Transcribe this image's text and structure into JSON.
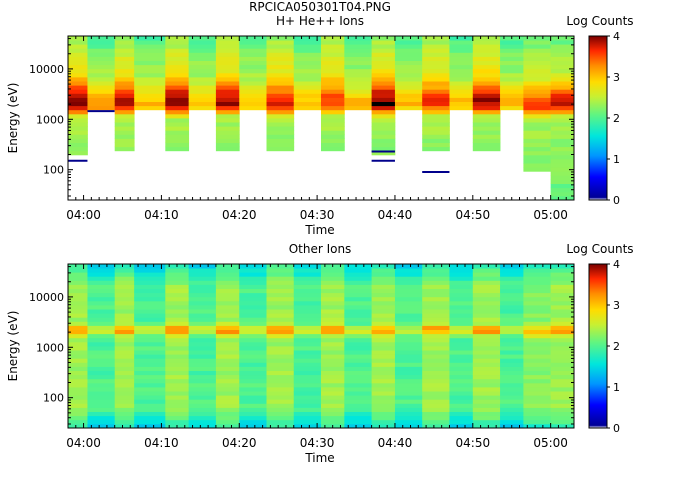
{
  "figure_title": "RPCICA050301T04.PNG",
  "chart_data": [
    {
      "type": "heatmap",
      "title": "H+ He++ Ions",
      "xlabel": "Time",
      "ylabel": "Energy (eV)",
      "x_ticks": [
        "04:00",
        "04:10",
        "04:20",
        "04:30",
        "04:40",
        "04:50",
        "05:00"
      ],
      "x_range": [
        "03:58",
        "05:03"
      ],
      "y_scale": "log",
      "y_ticks": [
        100,
        1000,
        10000
      ],
      "y_range": [
        25,
        45000
      ],
      "colorbar": {
        "label": "Log Counts",
        "range": [
          0,
          4
        ],
        "ticks": [
          0,
          1,
          2,
          3,
          4
        ]
      },
      "sweep_columns": [
        {
          "start": "03:58.0",
          "end": "04:00.5",
          "mode": "A",
          "low_cut_eV": 230,
          "peak_eV": 2100,
          "peak_level": 4.0,
          "band_floor_level": 2.6,
          "low_marker_eV": 150
        },
        {
          "start": "04:00.5",
          "end": "04:04.0",
          "mode": "B",
          "low_cut_eV": 1600,
          "peak_eV": 2000,
          "peak_level": 3.2,
          "band_floor_level": 2.2,
          "low_marker_eV": 1450
        },
        {
          "start": "04:04.0",
          "end": "04:06.5",
          "mode": "A",
          "low_cut_eV": 250,
          "peak_eV": 2100,
          "peak_level": 3.8,
          "band_floor_level": 2.6,
          "low_marker_eV": null
        },
        {
          "start": "04:06.5",
          "end": "04:10.5",
          "mode": "B",
          "low_cut_eV": 1600,
          "peak_eV": 2000,
          "peak_level": 3.0,
          "band_floor_level": 2.2,
          "low_marker_eV": null
        },
        {
          "start": "04:10.5",
          "end": "04:13.5",
          "mode": "A",
          "low_cut_eV": 250,
          "peak_eV": 2100,
          "peak_level": 4.0,
          "band_floor_level": 2.6,
          "low_marker_eV": null
        },
        {
          "start": "04:13.5",
          "end": "04:17.0",
          "mode": "B",
          "low_cut_eV": 1600,
          "peak_eV": 2000,
          "peak_level": 3.0,
          "band_floor_level": 2.2,
          "low_marker_eV": null
        },
        {
          "start": "04:17.0",
          "end": "04:20.0",
          "mode": "A",
          "low_cut_eV": 250,
          "peak_eV": 2200,
          "peak_level": 3.9,
          "band_floor_level": 2.6,
          "low_marker_eV": null
        },
        {
          "start": "04:20.0",
          "end": "04:23.5",
          "mode": "B",
          "low_cut_eV": 1600,
          "peak_eV": 2000,
          "peak_level": 3.0,
          "band_floor_level": 2.2,
          "low_marker_eV": null
        },
        {
          "start": "04:23.5",
          "end": "04:27.0",
          "mode": "A",
          "low_cut_eV": 250,
          "peak_eV": 2000,
          "peak_level": 3.7,
          "band_floor_level": 2.6,
          "low_marker_eV": null
        },
        {
          "start": "04:27.0",
          "end": "04:30.5",
          "mode": "B",
          "low_cut_eV": 1600,
          "peak_eV": 2000,
          "peak_level": 3.0,
          "band_floor_level": 2.2,
          "low_marker_eV": null
        },
        {
          "start": "04:30.5",
          "end": "04:33.5",
          "mode": "A",
          "low_cut_eV": 250,
          "peak_eV": 2100,
          "peak_level": 3.6,
          "band_floor_level": 2.6,
          "low_marker_eV": null
        },
        {
          "start": "04:33.5",
          "end": "04:37.0",
          "mode": "B",
          "low_cut_eV": 1600,
          "peak_eV": 2000,
          "peak_level": 3.0,
          "band_floor_level": 2.2,
          "low_marker_eV": null
        },
        {
          "start": "04:37.0",
          "end": "04:40.0",
          "mode": "A",
          "low_cut_eV": 230,
          "peak_eV": 2100,
          "peak_level": 4.0,
          "band_floor_level": 2.6,
          "low_marker_eV": 230
        },
        {
          "start": "04:40.0",
          "end": "04:43.5",
          "mode": "B",
          "low_cut_eV": 1600,
          "peak_eV": 2000,
          "peak_level": 3.0,
          "band_floor_level": 2.2,
          "low_marker_eV": null
        },
        {
          "start": "04:43.5",
          "end": "04:47.0",
          "mode": "A",
          "low_cut_eV": 250,
          "peak_eV": 2100,
          "peak_level": 3.6,
          "band_floor_level": 2.6,
          "low_marker_eV": 90
        },
        {
          "start": "04:47.0",
          "end": "04:50.0",
          "mode": "B",
          "low_cut_eV": 1600,
          "peak_eV": 2000,
          "peak_level": 3.0,
          "band_floor_level": 2.2,
          "low_marker_eV": null
        },
        {
          "start": "04:50.0",
          "end": "04:53.5",
          "mode": "A",
          "low_cut_eV": 250,
          "peak_eV": 2200,
          "peak_level": 3.9,
          "band_floor_level": 2.6,
          "low_marker_eV": null
        },
        {
          "start": "04:53.5",
          "end": "04:56.5",
          "mode": "B",
          "low_cut_eV": 1600,
          "peak_eV": 2000,
          "peak_level": 3.0,
          "band_floor_level": 2.2,
          "low_marker_eV": null
        },
        {
          "start": "04:56.5",
          "end": "05:00.0",
          "mode": "A",
          "low_cut_eV": 105,
          "peak_eV": 1800,
          "peak_level": 3.5,
          "band_floor_level": 2.4,
          "low_marker_eV": null
        },
        {
          "start": "05:00.0",
          "end": "05:03.0",
          "mode": "A",
          "low_cut_eV": 28,
          "peak_eV": 2100,
          "peak_level": 3.8,
          "band_floor_level": 2.3,
          "low_marker_eV": null
        }
      ],
      "extra_low_markers": [
        {
          "time": "04:37.0",
          "time_end": "04:40.0",
          "eV": 150
        }
      ]
    },
    {
      "type": "heatmap",
      "title": "Other Ions",
      "xlabel": "Time",
      "ylabel": "Energy (eV)",
      "x_ticks": [
        "04:00",
        "04:10",
        "04:20",
        "04:30",
        "04:40",
        "04:50",
        "05:00"
      ],
      "x_range": [
        "03:58",
        "05:03"
      ],
      "y_scale": "log",
      "y_ticks": [
        100,
        1000,
        10000
      ],
      "y_range": [
        25,
        45000
      ],
      "colorbar": {
        "label": "Log Counts",
        "range": [
          0,
          4
        ],
        "ticks": [
          0,
          1,
          2,
          3,
          4
        ]
      },
      "sweep_columns": [
        {
          "start": "03:58.0",
          "end": "04:00.5",
          "mode": "A",
          "peak_eV": 2200,
          "peak_level": 3.3,
          "background_level": 2.3
        },
        {
          "start": "04:00.5",
          "end": "04:04.0",
          "mode": "B",
          "peak_eV": 2200,
          "peak_level": 2.6,
          "background_level": 1.9
        },
        {
          "start": "04:04.0",
          "end": "04:06.5",
          "mode": "A",
          "peak_eV": 2200,
          "peak_level": 3.3,
          "background_level": 2.3
        },
        {
          "start": "04:06.5",
          "end": "04:10.5",
          "mode": "B",
          "peak_eV": 2200,
          "peak_level": 2.6,
          "background_level": 1.9
        },
        {
          "start": "04:10.5",
          "end": "04:13.5",
          "mode": "A",
          "peak_eV": 2200,
          "peak_level": 3.3,
          "background_level": 2.3
        },
        {
          "start": "04:13.5",
          "end": "04:17.0",
          "mode": "B",
          "peak_eV": 2200,
          "peak_level": 2.6,
          "background_level": 1.9
        },
        {
          "start": "04:17.0",
          "end": "04:20.0",
          "mode": "A",
          "peak_eV": 2200,
          "peak_level": 3.3,
          "background_level": 2.3
        },
        {
          "start": "04:20.0",
          "end": "04:23.5",
          "mode": "B",
          "peak_eV": 2200,
          "peak_level": 2.6,
          "background_level": 1.9
        },
        {
          "start": "04:23.5",
          "end": "04:27.0",
          "mode": "A",
          "peak_eV": 2200,
          "peak_level": 3.3,
          "background_level": 2.3
        },
        {
          "start": "04:27.0",
          "end": "04:30.5",
          "mode": "B",
          "peak_eV": 2200,
          "peak_level": 2.6,
          "background_level": 1.9
        },
        {
          "start": "04:30.5",
          "end": "04:33.5",
          "mode": "A",
          "peak_eV": 2300,
          "peak_level": 3.3,
          "background_level": 2.3
        },
        {
          "start": "04:33.5",
          "end": "04:37.0",
          "mode": "B",
          "peak_eV": 2200,
          "peak_level": 2.6,
          "background_level": 1.9
        },
        {
          "start": "04:37.0",
          "end": "04:40.0",
          "mode": "A",
          "peak_eV": 2200,
          "peak_level": 3.3,
          "background_level": 2.3
        },
        {
          "start": "04:40.0",
          "end": "04:43.5",
          "mode": "B",
          "peak_eV": 2200,
          "peak_level": 2.6,
          "background_level": 1.9
        },
        {
          "start": "04:43.5",
          "end": "04:47.0",
          "mode": "A",
          "peak_eV": 2300,
          "peak_level": 3.3,
          "background_level": 2.3
        },
        {
          "start": "04:47.0",
          "end": "04:50.0",
          "mode": "B",
          "peak_eV": 2200,
          "peak_level": 2.6,
          "background_level": 1.9
        },
        {
          "start": "04:50.0",
          "end": "04:53.5",
          "mode": "A",
          "peak_eV": 2200,
          "peak_level": 3.3,
          "background_level": 2.3
        },
        {
          "start": "04:53.5",
          "end": "04:56.5",
          "mode": "B",
          "peak_eV": 2200,
          "peak_level": 2.6,
          "background_level": 1.9
        },
        {
          "start": "04:56.5",
          "end": "05:00.0",
          "mode": "A",
          "peak_eV": 2100,
          "peak_level": 3.1,
          "background_level": 2.2
        },
        {
          "start": "05:00.0",
          "end": "05:03.0",
          "mode": "A",
          "peak_eV": 2200,
          "peak_level": 3.3,
          "background_level": 2.3
        }
      ]
    }
  ]
}
